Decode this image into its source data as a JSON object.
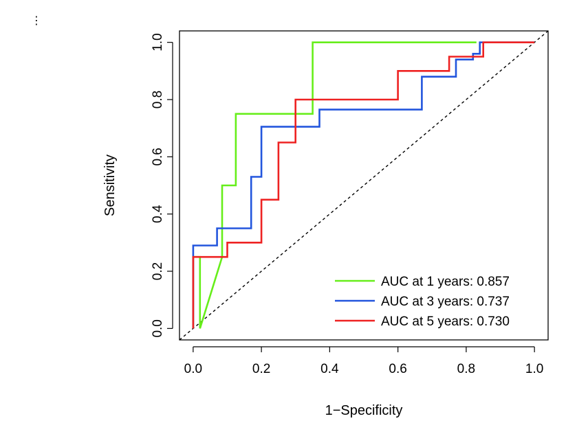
{
  "corner_glyph": "⋮",
  "chart_data": {
    "type": "line",
    "title": "",
    "xlabel": "1−Specificity",
    "ylabel": "Sensitivity",
    "xlim": [
      -0.04,
      1.04
    ],
    "ylim": [
      -0.04,
      1.04
    ],
    "x_ticks": [
      0,
      0.2,
      0.4,
      0.6,
      0.8,
      1.0
    ],
    "x_tick_labels": [
      "0.0",
      "0.2",
      "0.4",
      "0.6",
      "0.8",
      "1.0"
    ],
    "y_ticks": [
      0,
      0.2,
      0.4,
      0.6,
      0.8,
      1.0
    ],
    "y_tick_labels": [
      "0.0",
      "0.2",
      "0.4",
      "0.6",
      "0.8",
      "1.0"
    ],
    "grid": false,
    "legend_position": "bottom-right",
    "reference_line": {
      "from": [
        0,
        0
      ],
      "to": [
        1,
        1
      ],
      "style": "dashed",
      "color": "#000000"
    },
    "series": [
      {
        "name": "AUC at 1 years: 0.857",
        "color": "#66EE1A",
        "x": [
          0.0,
          0.0,
          0.02,
          0.02,
          0.085,
          0.085,
          0.125,
          0.125,
          0.35,
          0.35,
          0.83
        ],
        "y": [
          0.0,
          0.25,
          0.25,
          0.0,
          0.25,
          0.5,
          0.5,
          0.75,
          0.75,
          1.0,
          1.0
        ]
      },
      {
        "name": "AUC at 3 years: 0.737",
        "color": "#2255DD",
        "x": [
          0.0,
          0.0,
          0.07,
          0.07,
          0.17,
          0.17,
          0.2,
          0.2,
          0.37,
          0.37,
          0.67,
          0.67,
          0.77,
          0.77,
          0.82,
          0.82,
          0.84,
          0.84,
          1.0
        ],
        "y": [
          0.0,
          0.29,
          0.29,
          0.35,
          0.35,
          0.53,
          0.53,
          0.705,
          0.705,
          0.765,
          0.765,
          0.88,
          0.88,
          0.94,
          0.94,
          0.96,
          0.96,
          1.0,
          1.0
        ]
      },
      {
        "name": "AUC at 5 years: 0.730",
        "color": "#EE2222",
        "x": [
          0.0,
          0.0,
          0.1,
          0.1,
          0.2,
          0.2,
          0.25,
          0.25,
          0.3,
          0.3,
          0.6,
          0.6,
          0.75,
          0.75,
          0.85,
          0.85,
          1.0
        ],
        "y": [
          0.0,
          0.25,
          0.25,
          0.3,
          0.3,
          0.45,
          0.45,
          0.65,
          0.65,
          0.8,
          0.8,
          0.9,
          0.9,
          0.95,
          0.95,
          1.0,
          1.0
        ]
      }
    ]
  }
}
